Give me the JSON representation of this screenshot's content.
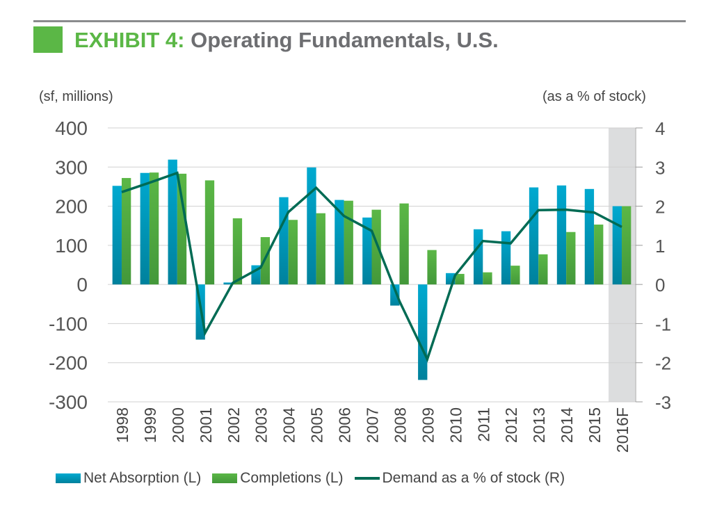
{
  "title": {
    "exhibit": "EXHIBIT 4:",
    "text": " Operating Fundamentals, U.S."
  },
  "chart_data": {
    "type": "bar",
    "categories": [
      "1998",
      "1999",
      "2000",
      "2001",
      "2002",
      "2003",
      "2004",
      "2005",
      "2006",
      "2007",
      "2008",
      "2009",
      "2010",
      "2011",
      "2012",
      "2013",
      "2014",
      "2015",
      "2016F"
    ],
    "series": [
      {
        "name": "Net Absorption (L)",
        "axis": "left",
        "type": "bar",
        "color": "#00a3c9",
        "values": [
          252,
          285,
          319,
          -141,
          5,
          49,
          223,
          299,
          216,
          171,
          -54,
          -244,
          29,
          141,
          136,
          248,
          253,
          244,
          200
        ]
      },
      {
        "name": "Completions (L)",
        "axis": "left",
        "type": "bar",
        "color": "#5bb746",
        "values": [
          272,
          286,
          283,
          266,
          169,
          121,
          165,
          182,
          214,
          191,
          207,
          88,
          27,
          31,
          48,
          77,
          134,
          153,
          200
        ]
      },
      {
        "name": "Demand as a % of stock (R)",
        "axis": "right",
        "type": "line",
        "color": "#006b54",
        "values": [
          2.36,
          2.6,
          2.85,
          -1.24,
          0.04,
          0.43,
          1.85,
          2.47,
          1.75,
          1.37,
          -0.43,
          -1.91,
          0.23,
          1.11,
          1.05,
          1.9,
          1.91,
          1.84,
          1.47
        ]
      }
    ],
    "ylabel_left": "(sf, millions)",
    "ylabel_right": "(as a % of stock)",
    "ylim_left": [
      -300,
      400
    ],
    "ylim_right": [
      -3,
      4
    ],
    "yticks_left": [
      "400",
      "300",
      "200",
      "100",
      "0",
      "-100",
      "-200",
      "-300"
    ],
    "yticks_right": [
      "4",
      "3",
      "2",
      "1",
      "0",
      "-1",
      "-2",
      "-3"
    ],
    "forecast_shaded": "2016F",
    "grid": true,
    "legend": "bottom"
  }
}
